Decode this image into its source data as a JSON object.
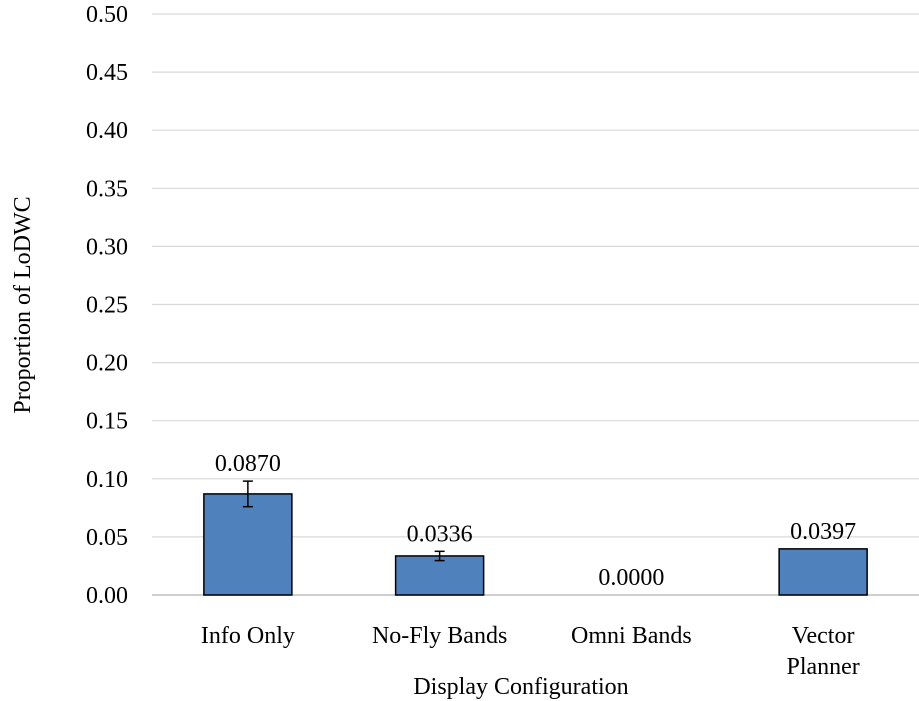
{
  "chart_data": {
    "type": "bar",
    "title": "",
    "xlabel": "Display Configuration",
    "ylabel": "Proportion of LoDWC",
    "ylim": [
      0,
      0.5
    ],
    "yticks": [
      "0.00",
      "0.05",
      "0.10",
      "0.15",
      "0.20",
      "0.25",
      "0.30",
      "0.35",
      "0.40",
      "0.45",
      "0.50"
    ],
    "grid": true,
    "legend": "none",
    "categories": [
      [
        "Info Only"
      ],
      [
        "No-Fly Bands"
      ],
      [
        "Omni Bands"
      ],
      [
        "Vector",
        "Planner"
      ]
    ],
    "values": [
      0.087,
      0.0336,
      0.0,
      0.0397
    ],
    "data_labels": [
      "0.0870",
      "0.0336",
      "0.0000",
      "0.0397"
    ],
    "error_bars": [
      0.011,
      0.004,
      null,
      null
    ],
    "colors": {
      "bar": "#4f81bd",
      "bar_edge": "#000000",
      "grid": "#d9d9d9",
      "axis": "#bfbfbf"
    }
  }
}
